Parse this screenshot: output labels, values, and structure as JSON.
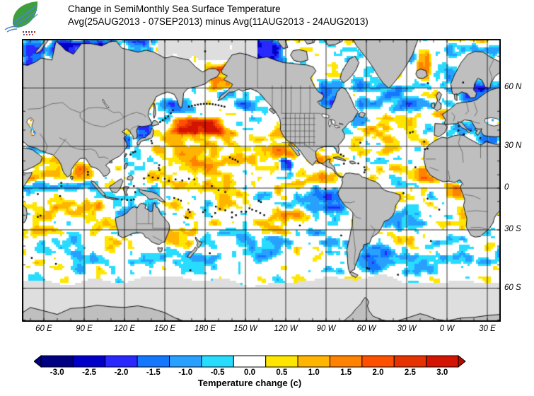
{
  "header": {
    "line1": "Change in SemiMonthly Sea Surface Temperature",
    "line2": "Avg(25AUG2013 - 07SEP2013) minus Avg(11AUG2013 - 24AUG2013)"
  },
  "logo": {
    "leaf_color": "#3da03c",
    "wave_color": "#4a86c8",
    "letter_colors": [
      "#c03a2b",
      "#2b4fa0"
    ]
  },
  "axes": {
    "lat_ticks": [
      {
        "label": "60 N",
        "lat": 60
      },
      {
        "label": "30 N",
        "lat": 30
      },
      {
        "label": "0",
        "lat": 0
      },
      {
        "label": "30 S",
        "lat": -30
      },
      {
        "label": "60 S",
        "lat": -60
      }
    ],
    "lon_ticks": [
      {
        "label": "60 E",
        "lon": 60
      },
      {
        "label": "90 E",
        "lon": 90
      },
      {
        "label": "120 E",
        "lon": 120
      },
      {
        "label": "150 E",
        "lon": 150
      },
      {
        "label": "180 E",
        "lon": 180
      },
      {
        "label": "150 W",
        "lon": 210
      },
      {
        "label": "120 W",
        "lon": 240
      },
      {
        "label": "90 W",
        "lon": 270
      },
      {
        "label": "60 W",
        "lon": 300
      },
      {
        "label": "30 W",
        "lon": 330
      },
      {
        "label": "0 W",
        "lon": 360
      },
      {
        "label": "30 E",
        "lon": 390
      }
    ]
  },
  "colorbar": {
    "labels": [
      "-3.0",
      "-2.5",
      "-2.0",
      "-1.5",
      "-1.0",
      "-0.5",
      "0.0",
      "0.5",
      "1.0",
      "1.5",
      "2.0",
      "2.5",
      "3.0"
    ],
    "colors": [
      "#000082",
      "#0000c8",
      "#2828ff",
      "#1478ff",
      "#28a0ff",
      "#28dcff",
      "#ffffff",
      "#ffe600",
      "#ffb400",
      "#ff8200",
      "#ff5000",
      "#e63200",
      "#d21400"
    ],
    "left_arrow": "#000082",
    "right_arrow": "#b40a00",
    "caption": "Temperature change  (c)"
  },
  "map_colors": {
    "ocean": "#ffffff",
    "land": "#bfbfbf",
    "coast": "#000000",
    "no_data": "#dedede",
    "internal_border": "#3f3f3f",
    "grid": "#000000"
  },
  "chart_data": {
    "type": "heatmap",
    "title": "Change in SemiMonthly Sea Surface Temperature",
    "subtitle": "Avg(25AUG2013 - 07SEP2013) minus Avg(11AUG2013 - 24AUG2013)",
    "units": "Temperature change (c)",
    "projection": "mercator",
    "lon_range_deg_east": [
      43.7,
      400
    ],
    "lat_range": [
      -70.3,
      74.2
    ],
    "grid_interval_deg": 30,
    "scale_values": [
      -3.0,
      -2.5,
      -2.0,
      -1.5,
      -1.0,
      -0.5,
      0.0,
      0.5,
      1.0,
      1.5,
      2.0,
      2.5,
      3.0
    ],
    "scale_colors": [
      "#000082",
      "#0000c8",
      "#2828ff",
      "#1478ff",
      "#28a0ff",
      "#28dcff",
      "#ffffff",
      "#ffe600",
      "#ffb400",
      "#ff8200",
      "#ff5000",
      "#e63200",
      "#d21400"
    ],
    "anomaly_regions": [
      {
        "name": "northwest-pacific-warm-core",
        "lon": [
          148,
          198
        ],
        "lat": [
          36,
          48
        ],
        "bias": 2.5
      },
      {
        "name": "north-pacific-broad-warm",
        "lon": [
          132,
          238
        ],
        "lat": [
          8,
          46
        ],
        "bias": 0.75
      },
      {
        "name": "sea-of-japan-cool",
        "lon": [
          127,
          142
        ],
        "lat": [
          33,
          47
        ],
        "bias": -2.3
      },
      {
        "name": "yellow-east-china-sea-cool",
        "lon": [
          117,
          126
        ],
        "lat": [
          27,
          39
        ],
        "bias": -1.6
      },
      {
        "name": "sea-of-okhotsk-mixed",
        "lon": [
          142,
          158
        ],
        "lat": [
          44,
          59
        ],
        "bias": -0.5
      },
      {
        "name": "kuril-kamchatka-cool",
        "lon": [
          150,
          175
        ],
        "lat": [
          48,
          56
        ],
        "bias": -1.0
      },
      {
        "name": "chukchi-warm",
        "lon": [
          181,
          203
        ],
        "lat": [
          58,
          69
        ],
        "bias": 1.5
      },
      {
        "name": "beaufort-cool",
        "lon": [
          203,
          242
        ],
        "lat": [
          66,
          75
        ],
        "bias": -2.6
      },
      {
        "name": "kara-laptev-cool",
        "lon": [
          58,
          118
        ],
        "lat": [
          67,
          75
        ],
        "bias": -2.5
      },
      {
        "name": "east-siberian-cool",
        "lon": [
          118,
          145
        ],
        "lat": [
          68,
          75
        ],
        "bias": -1.3
      },
      {
        "name": "barents-white-sea-cool",
        "lon": [
          43,
          62
        ],
        "lat": [
          63,
          75
        ],
        "bias": -1.6
      },
      {
        "name": "gulf-of-alaska-cool",
        "lon": [
          198,
          238
        ],
        "lat": [
          44,
          61
        ],
        "bias": -0.85
      },
      {
        "name": "california-coast-warm",
        "lon": [
          226,
          252
        ],
        "lat": [
          18,
          43
        ],
        "bias": 1.05
      },
      {
        "name": "baja-offshore-cool",
        "lon": [
          234,
          246
        ],
        "lat": [
          12,
          23
        ],
        "bias": -2.0
      },
      {
        "name": "west-equatorial-pacific-mixed",
        "lon": [
          140,
          215
        ],
        "lat": [
          -14,
          12
        ],
        "bias": 0.35
      },
      {
        "name": "east-pacific-warm-specks",
        "lon": [
          243,
          282
        ],
        "lat": [
          2,
          17
        ],
        "bias": 0.7
      },
      {
        "name": "peru-humboldt-cool",
        "lon": [
          252,
          288
        ],
        "lat": [
          -20,
          2
        ],
        "bias": -0.85
      },
      {
        "name": "south-pacific-cool-band",
        "lon": [
          168,
          252
        ],
        "lat": [
          -52,
          -28
        ],
        "bias": -0.6
      },
      {
        "name": "south-pacific-mixed",
        "lon": [
          148,
          285
        ],
        "lat": [
          -30,
          -10
        ],
        "bias": 0.25
      },
      {
        "name": "tasman-nz-mixed",
        "lon": [
          145,
          178
        ],
        "lat": [
          -45,
          -28
        ],
        "bias": 0.2
      },
      {
        "name": "southwest-atlantic-eddies",
        "lon": [
          283,
          325
        ],
        "lat": [
          -56,
          -33
        ],
        "bias": -0.95
      },
      {
        "name": "south-atlantic-cool",
        "lon": [
          298,
          362
        ],
        "lat": [
          -36,
          -14
        ],
        "bias": -0.5
      },
      {
        "name": "equatorial-atlantic-warm",
        "lon": [
          318,
          352
        ],
        "lat": [
          -13,
          3
        ],
        "bias": 0.65
      },
      {
        "name": "northwest-africa-warm-band",
        "lon": [
          333,
          358
        ],
        "lat": [
          3,
          17
        ],
        "bias": 1.5
      },
      {
        "name": "gulf-of-guinea-warm",
        "lon": [
          356,
          374
        ],
        "lat": [
          -9,
          5
        ],
        "bias": 1.1
      },
      {
        "name": "central-north-atlantic-warm",
        "lon": [
          283,
          327
        ],
        "lat": [
          31,
          46
        ],
        "bias": 0.75
      },
      {
        "name": "north-atlantic-cool",
        "lon": [
          283,
          347
        ],
        "lat": [
          46,
          65
        ],
        "bias": -1.1
      },
      {
        "name": "newfoundland-cool-spots",
        "lon": [
          287,
          301
        ],
        "lat": [
          40,
          50
        ],
        "bias": -1.5
      },
      {
        "name": "hudson-labrador-cool",
        "lon": [
          261,
          287
        ],
        "lat": [
          51,
          65
        ],
        "bias": -1.6
      },
      {
        "name": "denmark-strait-warm-streak",
        "lon": [
          336,
          349
        ],
        "lat": [
          61,
          73
        ],
        "bias": 1.4
      },
      {
        "name": "norwegian-barents-cool",
        "lon": [
          347,
          400
        ],
        "lat": [
          55,
          75
        ],
        "bias": -0.9
      },
      {
        "name": "baltic-cool",
        "lon": [
          370,
          391
        ],
        "lat": [
          53,
          61.5
        ],
        "bias": -1.1
      },
      {
        "name": "mediterranean-mixed",
        "lon": [
          355,
          400
        ],
        "lat": [
          29,
          45
        ],
        "bias": -0.55
      },
      {
        "name": "east-mediterranean-cool",
        "lon": [
          384,
          400
        ],
        "lat": [
          30,
          41
        ],
        "bias": -1.2
      },
      {
        "name": "gulf-of-mexico-warm",
        "lon": [
          261,
          283
        ],
        "lat": [
          17,
          31
        ],
        "bias": 0.5
      },
      {
        "name": "arabian-sea-warm",
        "lon": [
          43,
          79
        ],
        "lat": [
          2,
          27
        ],
        "bias": 1.25
      },
      {
        "name": "bay-of-bengal-warm",
        "lon": [
          79,
          100
        ],
        "lat": [
          3,
          23
        ],
        "bias": 0.95
      },
      {
        "name": "indian-ocean-warm",
        "lon": [
          43,
          122
        ],
        "lat": [
          -36,
          -4
        ],
        "bias": 0.5
      },
      {
        "name": "agulhas-eddies",
        "lon": [
          43,
          62
        ],
        "lat": [
          -44,
          -30
        ],
        "bias": -0.3
      },
      {
        "name": "subantarctic-mixed-west",
        "lon": [
          43,
          250
        ],
        "lat": [
          -57,
          -42
        ],
        "bias": -0.25
      },
      {
        "name": "subantarctic-mixed-east",
        "lon": [
          250,
          400
        ],
        "lat": [
          -57,
          -42
        ],
        "bias": -0.45
      }
    ]
  }
}
